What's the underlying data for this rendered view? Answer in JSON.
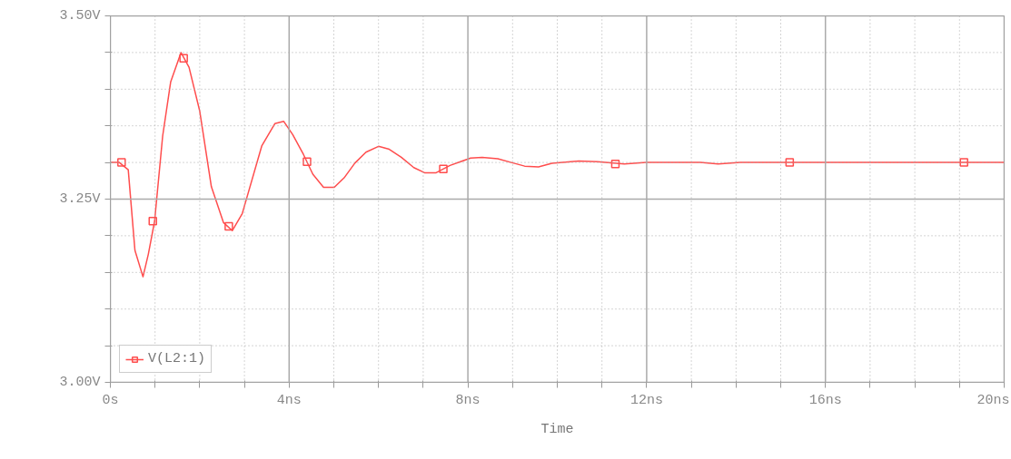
{
  "chart_data": {
    "type": "line",
    "xlabel": "Time",
    "xlim": [
      0,
      20
    ],
    "ylim": [
      3.0,
      3.5
    ],
    "xticks": [
      {
        "value": 0,
        "label": "0s"
      },
      {
        "value": 1,
        "label": null
      },
      {
        "value": 2,
        "label": null
      },
      {
        "value": 3,
        "label": null
      },
      {
        "value": 4,
        "label": "4ns"
      },
      {
        "value": 5,
        "label": null
      },
      {
        "value": 6,
        "label": null
      },
      {
        "value": 7,
        "label": null
      },
      {
        "value": 8,
        "label": "8ns"
      },
      {
        "value": 9,
        "label": null
      },
      {
        "value": 10,
        "label": null
      },
      {
        "value": 11,
        "label": null
      },
      {
        "value": 12,
        "label": "12ns"
      },
      {
        "value": 13,
        "label": null
      },
      {
        "value": 14,
        "label": null
      },
      {
        "value": 15,
        "label": null
      },
      {
        "value": 16,
        "label": "16ns"
      },
      {
        "value": 17,
        "label": null
      },
      {
        "value": 18,
        "label": null
      },
      {
        "value": 19,
        "label": null
      },
      {
        "value": 20,
        "label": "20ns"
      }
    ],
    "yticks": [
      {
        "value": 3.0,
        "label": "3.00V"
      },
      {
        "value": 3.05,
        "label": null
      },
      {
        "value": 3.1,
        "label": null
      },
      {
        "value": 3.15,
        "label": null
      },
      {
        "value": 3.2,
        "label": null
      },
      {
        "value": 3.25,
        "label": "3.25V"
      },
      {
        "value": 3.3,
        "label": null
      },
      {
        "value": 3.35,
        "label": null
      },
      {
        "value": 3.4,
        "label": null
      },
      {
        "value": 3.45,
        "label": null
      },
      {
        "value": 3.5,
        "label": "3.50V"
      }
    ],
    "grid": true,
    "legend": "bottom left",
    "line_style": "solid",
    "series": [
      {
        "name": "V(L2:1)",
        "marker": "none",
        "color": "#ff4d4d",
        "x": [
          0,
          0.2,
          0.4,
          0.55,
          0.73,
          0.85,
          0.99,
          1.17,
          1.35,
          1.58,
          1.76,
          2.0,
          2.26,
          2.53,
          2.73,
          2.95,
          3.39,
          3.68,
          3.88,
          4.08,
          4.32,
          4.53,
          4.77,
          5.01,
          5.23,
          5.47,
          5.72,
          6.0,
          6.24,
          6.51,
          6.79,
          7.03,
          7.29,
          7.6,
          8.06,
          8.32,
          8.67,
          8.97,
          9.27,
          9.58,
          9.88,
          10.48,
          10.9,
          11.5,
          12.0,
          13.2,
          13.6,
          14.1,
          20
        ],
        "values": [
          3.3,
          3.3,
          3.29,
          3.18,
          3.144,
          3.175,
          3.22,
          3.336,
          3.41,
          3.45,
          3.43,
          3.37,
          3.267,
          3.218,
          3.207,
          3.23,
          3.323,
          3.353,
          3.356,
          3.338,
          3.311,
          3.284,
          3.266,
          3.266,
          3.279,
          3.299,
          3.314,
          3.322,
          3.318,
          3.307,
          3.293,
          3.286,
          3.286,
          3.296,
          3.306,
          3.307,
          3.305,
          3.3,
          3.295,
          3.294,
          3.299,
          3.302,
          3.301,
          3.298,
          3.3,
          3.3,
          3.298,
          3.3,
          3.3
        ]
      },
      {
        "type": "scatter",
        "marker": "square",
        "color": "#ff4d4d",
        "x": [
          0.25,
          0.95,
          1.64,
          2.65,
          4.4,
          7.45,
          11.3,
          15.2,
          19.1
        ],
        "values": [
          3.3,
          3.22,
          3.442,
          3.213,
          3.301,
          3.291,
          3.298,
          3.3,
          3.3
        ]
      }
    ]
  }
}
